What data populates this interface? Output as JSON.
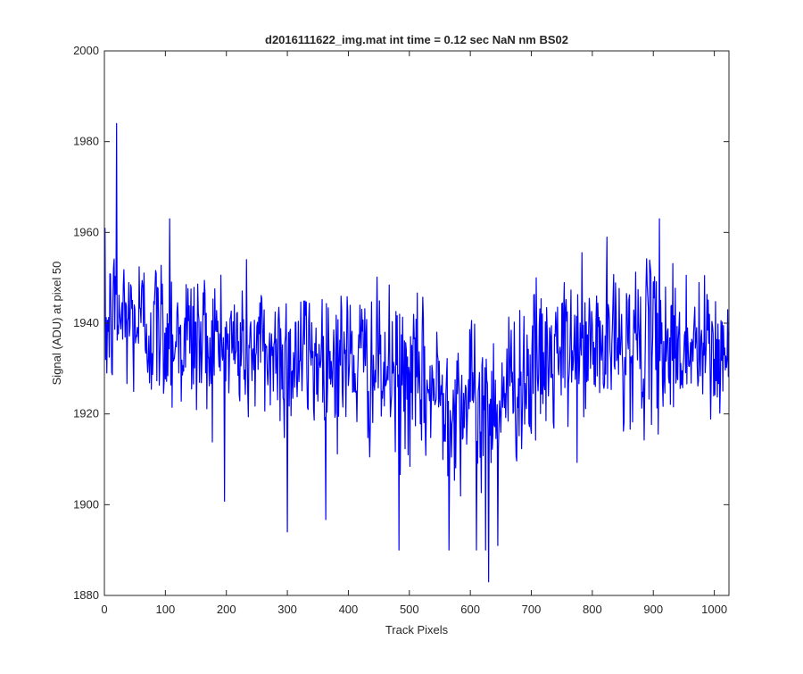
{
  "chart_data": {
    "type": "line",
    "title": "d2016111622_img.mat int time = 0.12 sec  NaN nm BS02",
    "xlabel": "Track Pixels",
    "ylabel": "Signal (ADU) at pixel 50",
    "xlim": [
      0,
      1024
    ],
    "ylim": [
      1880,
      2000
    ],
    "x_ticks": [
      0,
      100,
      200,
      300,
      400,
      500,
      600,
      700,
      800,
      900,
      1000
    ],
    "y_ticks": [
      1880,
      1900,
      1920,
      1940,
      1960,
      1980,
      2000
    ],
    "grid": false,
    "line_color": "#0000ff",
    "axes_color": "#262626",
    "series": [
      {
        "x_start": 1,
        "x_step": 1,
        "points_total": 1024,
        "approx_profile": [
          [
            1,
            1938
          ],
          [
            20,
            1942
          ],
          [
            60,
            1940
          ],
          [
            100,
            1938
          ],
          [
            200,
            1935
          ],
          [
            300,
            1933
          ],
          [
            400,
            1932
          ],
          [
            480,
            1928
          ],
          [
            560,
            1924
          ],
          [
            630,
            1922
          ],
          [
            680,
            1928
          ],
          [
            750,
            1933
          ],
          [
            850,
            1936
          ],
          [
            950,
            1935
          ],
          [
            1024,
            1932
          ]
        ],
        "approx_spikes": [
          [
            20,
            1984
          ],
          [
            107,
            1963
          ],
          [
            910,
            1963
          ],
          [
            300,
            1894
          ],
          [
            483,
            1890
          ],
          [
            565,
            1890
          ],
          [
            610,
            1890
          ],
          [
            625,
            1890
          ],
          [
            630,
            1883
          ],
          [
            645,
            1891
          ]
        ]
      }
    ]
  }
}
